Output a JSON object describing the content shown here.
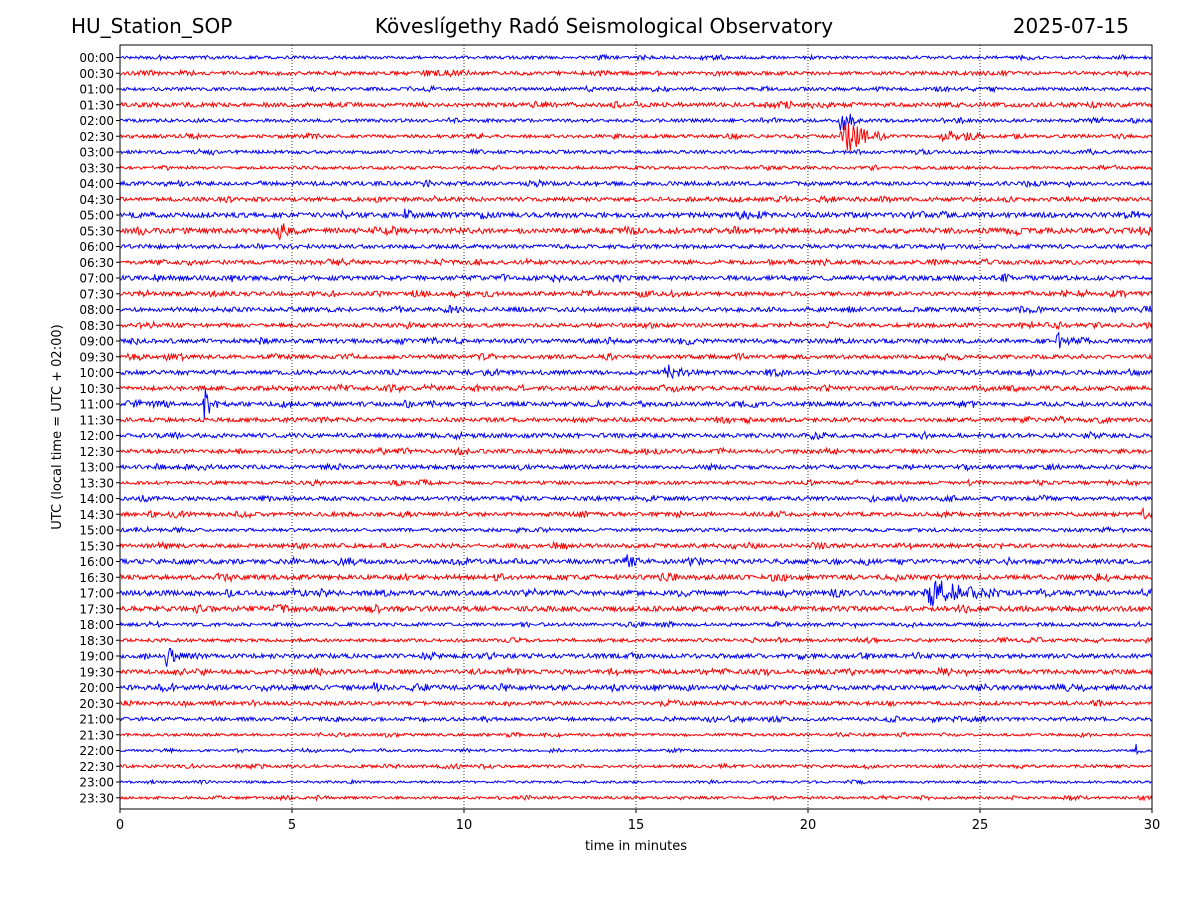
{
  "header": {
    "station": "HU_Station_SOP",
    "title": "Köveslígethy Radó Seismological Observatory",
    "date": "2025-07-15"
  },
  "chart_data": {
    "type": "line",
    "title": "Köveslígethy Radó Seismological Observatory",
    "xlabel": "time in minutes",
    "ylabel": "UTC (local time = UTC + 02:00)",
    "xlim": [
      0,
      30
    ],
    "xticks": [
      0,
      5,
      10,
      15,
      20,
      25,
      30
    ],
    "grid": "vertical dotted lines at x ticks",
    "row_labels": [
      "00:00",
      "00:30",
      "01:00",
      "01:30",
      "02:00",
      "02:30",
      "03:00",
      "03:30",
      "04:00",
      "04:30",
      "05:00",
      "05:30",
      "06:00",
      "06:30",
      "07:00",
      "07:30",
      "08:00",
      "08:30",
      "09:00",
      "09:30",
      "10:00",
      "10:30",
      "11:00",
      "11:30",
      "12:00",
      "12:30",
      "13:00",
      "13:30",
      "14:00",
      "14:30",
      "15:00",
      "15:30",
      "16:00",
      "16:30",
      "17:00",
      "17:30",
      "18:00",
      "18:30",
      "19:00",
      "19:30",
      "20:00",
      "20:30",
      "21:00",
      "21:30",
      "22:00",
      "22:30",
      "23:00",
      "23:30"
    ],
    "colors": [
      "#0000ff",
      "#ff0000"
    ],
    "noise_levels": [
      0.9,
      1.1,
      1.0,
      1.3,
      1.0,
      1.0,
      1.0,
      0.9,
      1.2,
      1.2,
      1.5,
      1.6,
      1.2,
      1.2,
      1.4,
      1.2,
      1.3,
      1.2,
      1.3,
      1.2,
      1.3,
      1.3,
      1.3,
      1.2,
      1.3,
      1.2,
      1.2,
      1.0,
      1.2,
      1.2,
      1.0,
      1.2,
      1.4,
      1.4,
      1.5,
      1.5,
      1.0,
      1.0,
      1.3,
      1.3,
      1.4,
      1.1,
      1.1,
      0.8,
      0.7,
      0.9,
      0.7,
      0.8
    ],
    "events": [
      {
        "row": "02:00",
        "minute": 20.9,
        "duration": 0.6,
        "amplitude": 2.2
      },
      {
        "row": "02:30",
        "minute": 20.9,
        "duration": 1.5,
        "amplitude": 2.4
      },
      {
        "row": "02:30",
        "minute": 23.8,
        "duration": 1.2,
        "amplitude": 0.8
      },
      {
        "row": "05:00",
        "minute": 8.2,
        "duration": 0.5,
        "amplitude": 0.8
      },
      {
        "row": "05:30",
        "minute": 4.5,
        "duration": 0.8,
        "amplitude": 0.7
      },
      {
        "row": "09:00",
        "minute": 27.2,
        "duration": 0.5,
        "amplitude": 1.0
      },
      {
        "row": "10:00",
        "minute": 15.8,
        "duration": 0.9,
        "amplitude": 1.2
      },
      {
        "row": "11:00",
        "minute": 2.4,
        "duration": 0.5,
        "amplitude": 2.6
      },
      {
        "row": "14:30",
        "minute": 29.7,
        "duration": 0.3,
        "amplitude": 1.0
      },
      {
        "row": "16:00",
        "minute": 14.6,
        "duration": 0.6,
        "amplitude": 1.1
      },
      {
        "row": "17:00",
        "minute": 23.3,
        "duration": 2.5,
        "amplitude": 1.9
      },
      {
        "row": "17:00",
        "minute": 3.0,
        "duration": 0.3,
        "amplitude": 0.9
      },
      {
        "row": "19:00",
        "minute": 1.3,
        "duration": 0.5,
        "amplitude": 2.2
      },
      {
        "row": "20:00",
        "minute": 7.3,
        "duration": 0.4,
        "amplitude": 0.8
      },
      {
        "row": "22:00",
        "minute": 29.5,
        "duration": 0.3,
        "amplitude": 0.8
      }
    ]
  }
}
